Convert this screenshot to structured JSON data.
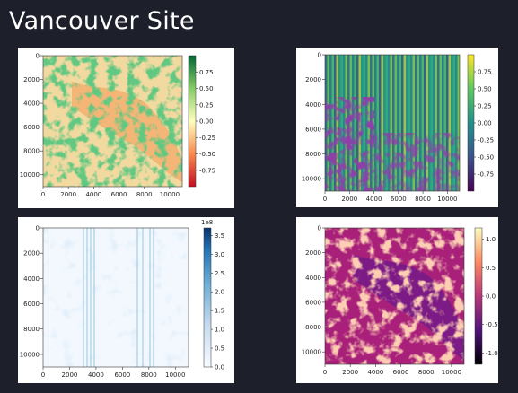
{
  "page": {
    "title": "Vancouver Site"
  },
  "panels": [
    {
      "name": "ndvi-panel",
      "colormap": "RdYlGn",
      "x_ticks": [
        "0",
        "2000",
        "4000",
        "6000",
        "8000",
        "10000"
      ],
      "y_ticks": [
        "0",
        "2000",
        "4000",
        "6000",
        "8000",
        "10000"
      ],
      "colorbar_ticks": [
        "0.75",
        "0.50",
        "0.25",
        "0.00",
        "-0.25",
        "-0.50",
        "-0.75"
      ],
      "colorbar_exponent": ""
    },
    {
      "name": "viridis-panel",
      "colormap": "viridis",
      "x_ticks": [
        "0",
        "2000",
        "4000",
        "6000",
        "8000",
        "10000"
      ],
      "y_ticks": [
        "0",
        "2000",
        "4000",
        "6000",
        "8000",
        "10000"
      ],
      "colorbar_ticks": [
        "0.75",
        "0.50",
        "0.25",
        "0.00",
        "-0.25",
        "-0.50",
        "-0.75"
      ],
      "colorbar_exponent": ""
    },
    {
      "name": "blues-panel",
      "colormap": "Blues",
      "x_ticks": [
        "0",
        "2000",
        "4000",
        "6000",
        "8000",
        "10000"
      ],
      "y_ticks": [
        "0",
        "2000",
        "4000",
        "6000",
        "8000",
        "10000"
      ],
      "colorbar_ticks": [
        "3.5",
        "3.0",
        "2.5",
        "2.0",
        "1.5",
        "1.0",
        "0.5",
        "0.0"
      ],
      "colorbar_exponent": "1e8"
    },
    {
      "name": "magma-panel",
      "colormap": "magma",
      "x_ticks": [
        "0",
        "2000",
        "4000",
        "6000",
        "8000",
        "10000"
      ],
      "y_ticks": [
        "0",
        "2000",
        "4000",
        "6000",
        "8000",
        "10000"
      ],
      "colorbar_ticks": [
        "1.0",
        "0.5",
        "0.0",
        "-0.5",
        "-1.0"
      ],
      "colorbar_exponent": ""
    }
  ]
}
